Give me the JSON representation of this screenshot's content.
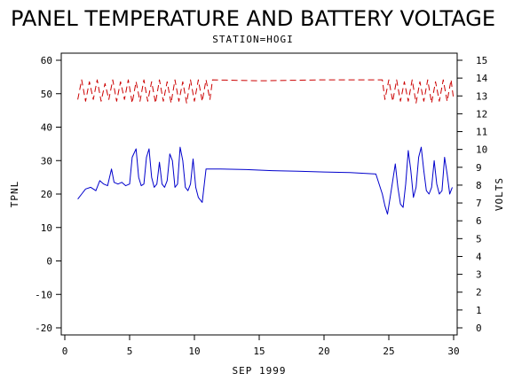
{
  "chart_data": {
    "type": "line",
    "title": "PANEL TEMPERATURE AND BATTERY VOLTAGE",
    "subtitle": "STATION=HOGI",
    "xlabel": "SEP 1999",
    "ylabel_left": "TPNL",
    "ylabel_right": "VOLTS",
    "xlim": [
      0,
      30
    ],
    "ylim_left": [
      -20,
      60
    ],
    "ylim_right": [
      0,
      15
    ],
    "x_ticks": [
      0,
      5,
      10,
      15,
      20,
      25,
      30
    ],
    "y_left_ticks": [
      -20,
      -10,
      0,
      10,
      20,
      30,
      40,
      50,
      60
    ],
    "y_right_ticks": [
      0,
      1,
      2,
      3,
      4,
      5,
      6,
      7,
      8,
      9,
      10,
      11,
      12,
      13,
      14,
      15
    ],
    "grid": false,
    "series": [
      {
        "axis": "left",
        "color": "#0000cc",
        "style": "solid",
        "x": [
          1.0,
          1.3,
          1.6,
          2.0,
          2.4,
          2.7,
          3.0,
          3.3,
          3.6,
          3.8,
          4.1,
          4.4,
          4.7,
          5.0,
          5.2,
          5.5,
          5.7,
          5.9,
          6.1,
          6.3,
          6.5,
          6.7,
          6.9,
          7.1,
          7.3,
          7.5,
          7.7,
          7.9,
          8.1,
          8.3,
          8.5,
          8.7,
          8.9,
          9.1,
          9.3,
          9.5,
          9.7,
          9.9,
          10.1,
          10.3,
          10.6,
          10.9,
          11.1,
          11.3,
          11.4,
          12.0,
          14.0,
          16.0,
          18.0,
          20.0,
          22.0,
          24.0,
          24.5,
          24.7,
          24.9,
          25.1,
          25.3,
          25.5,
          25.7,
          25.9,
          26.1,
          26.3,
          26.5,
          26.7,
          26.9,
          27.1,
          27.3,
          27.5,
          27.7,
          27.9,
          28.1,
          28.3,
          28.5,
          28.7,
          28.9,
          29.1,
          29.3,
          29.5,
          29.7,
          29.9
        ],
        "values": [
          18.5,
          20,
          21.5,
          22,
          21,
          24,
          23,
          22.5,
          27.5,
          23.5,
          23,
          23.5,
          22.5,
          23,
          31,
          33.5,
          25,
          22.5,
          23,
          31,
          33.5,
          25,
          22,
          23,
          29.5,
          23,
          22,
          24,
          32,
          30,
          22,
          23,
          34,
          30,
          22,
          21,
          23,
          30.5,
          22,
          19,
          17.5,
          27.5,
          27.5,
          27.5,
          27.5,
          27.5,
          27.3,
          27.0,
          26.8,
          26.6,
          26.4,
          26.0,
          20,
          16.5,
          14,
          19,
          24,
          29,
          22,
          17,
          16,
          23,
          33,
          27,
          19,
          22,
          31,
          34,
          27,
          21,
          20,
          22,
          30,
          23,
          20,
          21,
          31,
          26,
          20,
          22
        ]
      },
      {
        "axis": "right",
        "color": "#cc0000",
        "style": "dashed",
        "x": [
          1.0,
          1.3,
          1.6,
          1.9,
          2.2,
          2.5,
          2.8,
          3.1,
          3.4,
          3.7,
          4.0,
          4.3,
          4.6,
          4.9,
          5.2,
          5.5,
          5.8,
          6.1,
          6.4,
          6.7,
          7.0,
          7.3,
          7.6,
          7.9,
          8.2,
          8.5,
          8.8,
          9.1,
          9.4,
          9.7,
          10.0,
          10.3,
          10.6,
          10.9,
          11.2,
          11.4,
          15.0,
          20.0,
          24.5,
          24.7,
          25.0,
          25.3,
          25.6,
          25.9,
          26.2,
          26.5,
          26.8,
          27.1,
          27.4,
          27.7,
          28.0,
          28.3,
          28.6,
          28.9,
          29.2,
          29.5,
          29.8,
          30.0
        ],
        "values": [
          12.8,
          13.9,
          12.7,
          13.8,
          12.8,
          13.9,
          12.7,
          13.7,
          12.8,
          13.9,
          12.7,
          13.8,
          12.8,
          13.9,
          12.6,
          13.8,
          12.7,
          13.9,
          12.7,
          13.8,
          12.6,
          13.9,
          12.7,
          13.8,
          12.6,
          13.9,
          12.7,
          13.8,
          12.6,
          13.9,
          12.7,
          13.9,
          12.7,
          13.9,
          12.8,
          13.9,
          13.85,
          13.9,
          13.9,
          12.8,
          13.9,
          12.7,
          13.9,
          12.7,
          13.8,
          12.7,
          13.9,
          12.6,
          13.8,
          12.7,
          13.9,
          12.6,
          13.8,
          12.7,
          13.9,
          12.7,
          13.9,
          12.8
        ]
      }
    ]
  }
}
